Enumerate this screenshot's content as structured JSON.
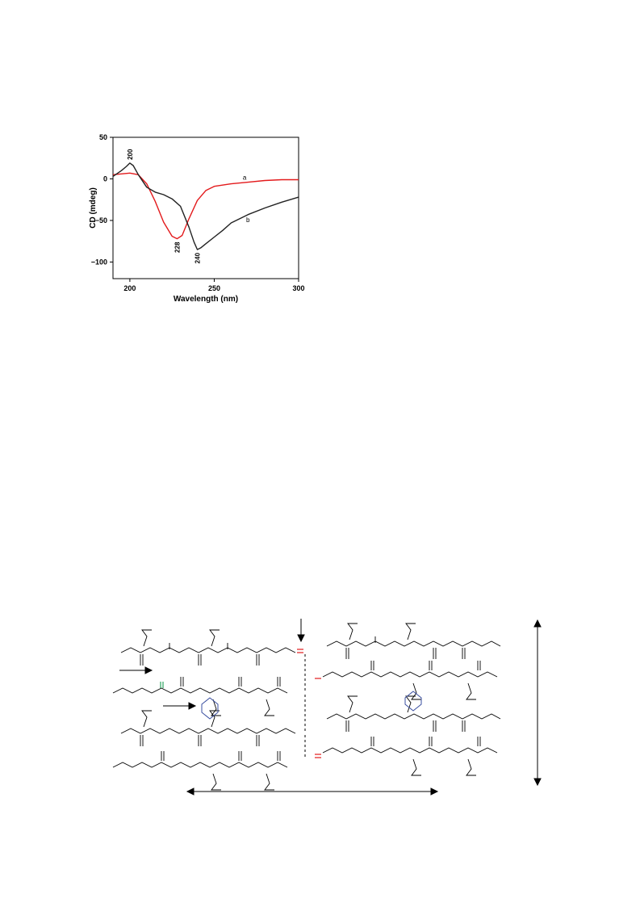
{
  "chart_data": {
    "type": "line",
    "title": "",
    "xlabel": "Wavelength (nm)",
    "ylabel": "CD (mdeg)",
    "xlim": [
      190,
      300
    ],
    "ylim": [
      -120,
      50
    ],
    "xticks": [
      200,
      250,
      300
    ],
    "yticks": [
      50,
      0,
      -50,
      -100
    ],
    "grid": false,
    "legend": "none",
    "series": [
      {
        "name": "a",
        "color": "#e31a1c",
        "x": [
          190,
          195,
          200,
          205,
          210,
          215,
          220,
          225,
          228,
          231,
          235,
          240,
          245,
          250,
          260,
          270,
          280,
          290,
          300
        ],
        "y": [
          5,
          6,
          7,
          5,
          -6,
          -27,
          -52,
          -69,
          -72,
          -68,
          -48,
          -26,
          -14,
          -9,
          -6,
          -4,
          -2,
          -1,
          -1
        ]
      },
      {
        "name": "b",
        "color": "#222222",
        "x": [
          190,
          195,
          198,
          200,
          202,
          205,
          210,
          215,
          220,
          225,
          230,
          235,
          238,
          240,
          242,
          245,
          250,
          255,
          260,
          270,
          280,
          290,
          300
        ],
        "y": [
          3,
          10,
          15,
          19,
          16,
          5,
          -10,
          -16,
          -19,
          -24,
          -33,
          -58,
          -76,
          -85,
          -83,
          -78,
          -70,
          -62,
          -53,
          -43,
          -35,
          -28,
          -22
        ]
      }
    ],
    "annotations": [
      {
        "text": "200",
        "x": 200,
        "y": 19,
        "orientation": "vertical"
      },
      {
        "text": "228",
        "x": 228,
        "y": -72,
        "orientation": "vertical"
      },
      {
        "text": "240",
        "x": 240,
        "y": -85,
        "orientation": "vertical"
      },
      {
        "text": "a",
        "x": 268,
        "y": -1
      },
      {
        "text": "b",
        "x": 270,
        "y": -52
      }
    ]
  }
}
